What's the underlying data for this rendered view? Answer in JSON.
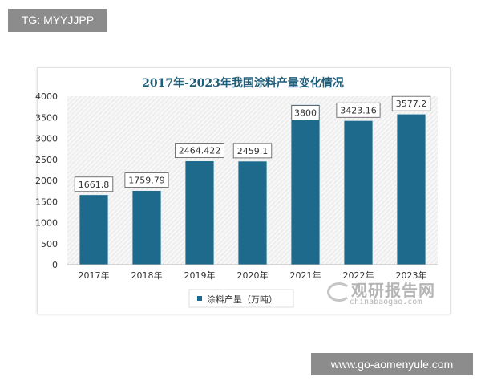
{
  "overlay": {
    "tag": "TG: MYYJJPP",
    "site": "www.go-aomenyule.com"
  },
  "watermark": {
    "cn": "观研报告网",
    "en": "chinabaogao.com"
  },
  "chart_data": {
    "type": "bar",
    "title": "2017年-2023年我国涂料产量变化情况",
    "categories": [
      "2017年",
      "2018年",
      "2019年",
      "2020年",
      "2021年",
      "2022年",
      "2023年"
    ],
    "series": [
      {
        "name": "涂料产量（万吨）",
        "values": [
          1661.8,
          1759.79,
          2464.422,
          2459.1,
          3800,
          3423.16,
          3577.2
        ]
      }
    ],
    "data_labels": [
      "1661.8",
      "1759.79",
      "2464.422",
      "2459.1",
      "3800",
      "3423.16",
      "3577.2"
    ],
    "ylim": [
      0,
      4000
    ],
    "yticks": [
      0,
      500,
      1000,
      1500,
      2000,
      2500,
      3000,
      3500,
      4000
    ],
    "xlabel": "",
    "ylabel": "",
    "legend": "bottom-center",
    "grid": false,
    "colors": {
      "bar": "#1d6a8d",
      "title": "#1f5e7a",
      "background_hatch": "#e6e6e6"
    }
  }
}
